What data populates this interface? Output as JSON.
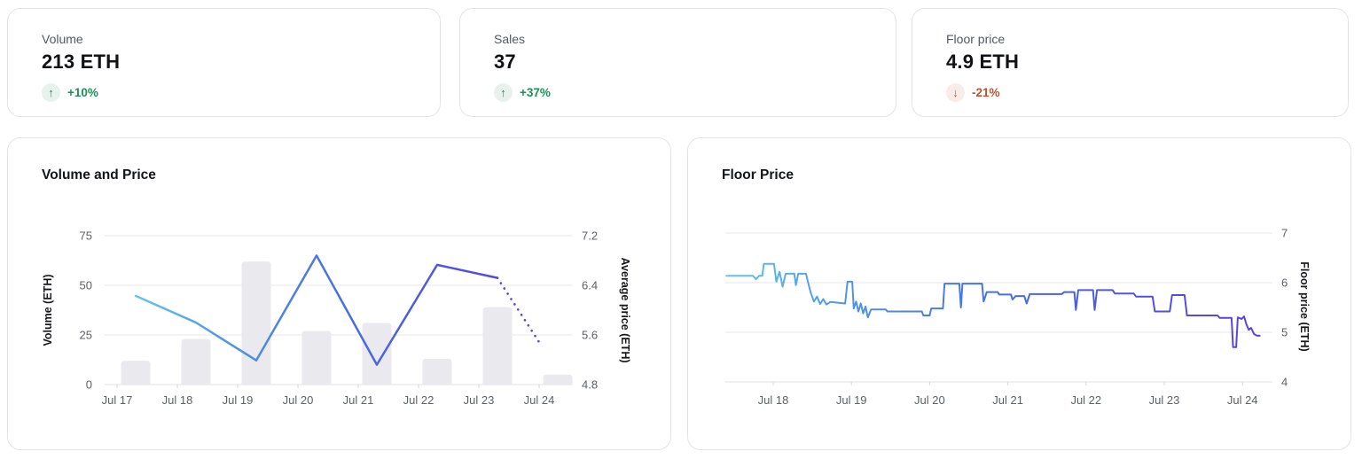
{
  "stats": [
    {
      "label": "Volume",
      "value": "213 ETH",
      "change": "+10%",
      "direction": "up",
      "arrow": "↑"
    },
    {
      "label": "Sales",
      "value": "37",
      "change": "+37%",
      "direction": "up",
      "arrow": "↑"
    },
    {
      "label": "Floor price",
      "value": "4.9 ETH",
      "change": "-21%",
      "direction": "down",
      "arrow": "↓"
    }
  ],
  "colors": {
    "positive": "#1f8f56",
    "positive_bg": "#e6f2eb",
    "negative": "#c0512f",
    "negative_bg": "#f9ebe7",
    "bar": "#e9e9ee",
    "grid": "#e7e7ea",
    "axis": "#dfe0e3",
    "tick": "#d7d8db",
    "tick_text": "#5c6166",
    "label_text": "#17191c",
    "line_gradient": [
      "#66c4ed",
      "#4f9ae7",
      "#4a7de4",
      "#4a64e2",
      "#5150e0",
      "#5b41df"
    ],
    "dot": "#5a47e0"
  },
  "chart_data": [
    {
      "type": "bar",
      "title": "Volume and Price",
      "categories": [
        "Jul 17",
        "Jul 18",
        "Jul 19",
        "Jul 20",
        "Jul 21",
        "Jul 22",
        "Jul 23",
        "Jul 24"
      ],
      "bar_series": {
        "name": "Volume",
        "values": [
          12,
          23,
          62,
          27,
          31,
          13,
          39,
          5
        ]
      },
      "line_series": {
        "name": "Average price",
        "values": [
          6.23,
          5.8,
          5.19,
          6.88,
          5.12,
          6.73,
          6.52
        ],
        "projected_value": 5.44,
        "projected_style": "dotted"
      },
      "ylabel_left": "Volume (ETH)",
      "ylim_left": [
        0,
        75
      ],
      "yticks_left": [
        0,
        25,
        50,
        75
      ],
      "ylabel_right": "Average price (ETH)",
      "ylim_right": [
        4.8,
        7.2
      ],
      "yticks_right": [
        4.8,
        5.6,
        6.4,
        7.2
      ],
      "grid": true,
      "legend": "none"
    },
    {
      "type": "line",
      "title": "Floor Price",
      "xticks": [
        "Jul 18",
        "Jul 19",
        "Jul 20",
        "Jul 21",
        "Jul 22",
        "Jul 23",
        "Jul 24"
      ],
      "xtick_days": [
        18,
        19,
        20,
        21,
        22,
        23,
        24
      ],
      "ylabel": "Floor price (ETH)",
      "ylim": [
        4,
        7
      ],
      "yticks": [
        4,
        5,
        6,
        7
      ],
      "grid": true,
      "legend": "none",
      "points": [
        [
          17.4,
          6.14
        ],
        [
          17.74,
          6.14
        ],
        [
          17.78,
          6.07
        ],
        [
          17.82,
          6.14
        ],
        [
          17.86,
          6.14
        ],
        [
          17.88,
          6.38
        ],
        [
          18.01,
          6.38
        ],
        [
          18.04,
          6.02
        ],
        [
          18.08,
          6.22
        ],
        [
          18.12,
          5.92
        ],
        [
          18.16,
          6.18
        ],
        [
          18.27,
          6.18
        ],
        [
          18.29,
          5.95
        ],
        [
          18.32,
          6.18
        ],
        [
          18.42,
          6.18
        ],
        [
          18.44,
          6.04
        ],
        [
          18.48,
          5.8
        ],
        [
          18.52,
          5.62
        ],
        [
          18.56,
          5.72
        ],
        [
          18.6,
          5.57
        ],
        [
          18.64,
          5.67
        ],
        [
          18.68,
          5.56
        ],
        [
          18.73,
          5.61
        ],
        [
          18.92,
          5.58
        ],
        [
          18.95,
          6.02
        ],
        [
          19.01,
          6.02
        ],
        [
          19.03,
          5.48
        ],
        [
          19.06,
          5.62
        ],
        [
          19.09,
          5.42
        ],
        [
          19.12,
          5.58
        ],
        [
          19.15,
          5.38
        ],
        [
          19.18,
          5.52
        ],
        [
          19.21,
          5.3
        ],
        [
          19.25,
          5.46
        ],
        [
          19.44,
          5.46
        ],
        [
          19.46,
          5.42
        ],
        [
          19.9,
          5.42
        ],
        [
          19.92,
          5.34
        ],
        [
          20.0,
          5.34
        ],
        [
          20.02,
          5.48
        ],
        [
          20.17,
          5.48
        ],
        [
          20.19,
          5.98
        ],
        [
          20.38,
          5.98
        ],
        [
          20.4,
          5.5
        ],
        [
          20.42,
          5.98
        ],
        [
          20.67,
          5.98
        ],
        [
          20.69,
          5.62
        ],
        [
          20.73,
          5.81
        ],
        [
          20.87,
          5.81
        ],
        [
          20.89,
          5.76
        ],
        [
          21.04,
          5.76
        ],
        [
          21.06,
          5.66
        ],
        [
          21.1,
          5.73
        ],
        [
          21.21,
          5.73
        ],
        [
          21.24,
          5.58
        ],
        [
          21.28,
          5.77
        ],
        [
          21.69,
          5.77
        ],
        [
          21.72,
          5.81
        ],
        [
          21.85,
          5.81
        ],
        [
          21.87,
          5.45
        ],
        [
          21.9,
          5.85
        ],
        [
          22.09,
          5.85
        ],
        [
          22.11,
          5.45
        ],
        [
          22.14,
          5.85
        ],
        [
          22.34,
          5.85
        ],
        [
          22.37,
          5.78
        ],
        [
          22.61,
          5.78
        ],
        [
          22.64,
          5.72
        ],
        [
          22.85,
          5.72
        ],
        [
          22.88,
          5.42
        ],
        [
          23.07,
          5.42
        ],
        [
          23.1,
          5.75
        ],
        [
          23.26,
          5.75
        ],
        [
          23.29,
          5.34
        ],
        [
          23.68,
          5.34
        ],
        [
          23.71,
          5.29
        ],
        [
          23.86,
          5.29
        ],
        [
          23.88,
          4.7
        ],
        [
          23.92,
          4.7
        ],
        [
          23.94,
          5.3
        ],
        [
          23.99,
          5.27
        ],
        [
          24.02,
          5.32
        ],
        [
          24.05,
          5.16
        ],
        [
          24.08,
          5.05
        ],
        [
          24.11,
          5.09
        ],
        [
          24.15,
          4.96
        ],
        [
          24.19,
          4.93
        ],
        [
          24.22,
          4.93
        ]
      ]
    }
  ]
}
